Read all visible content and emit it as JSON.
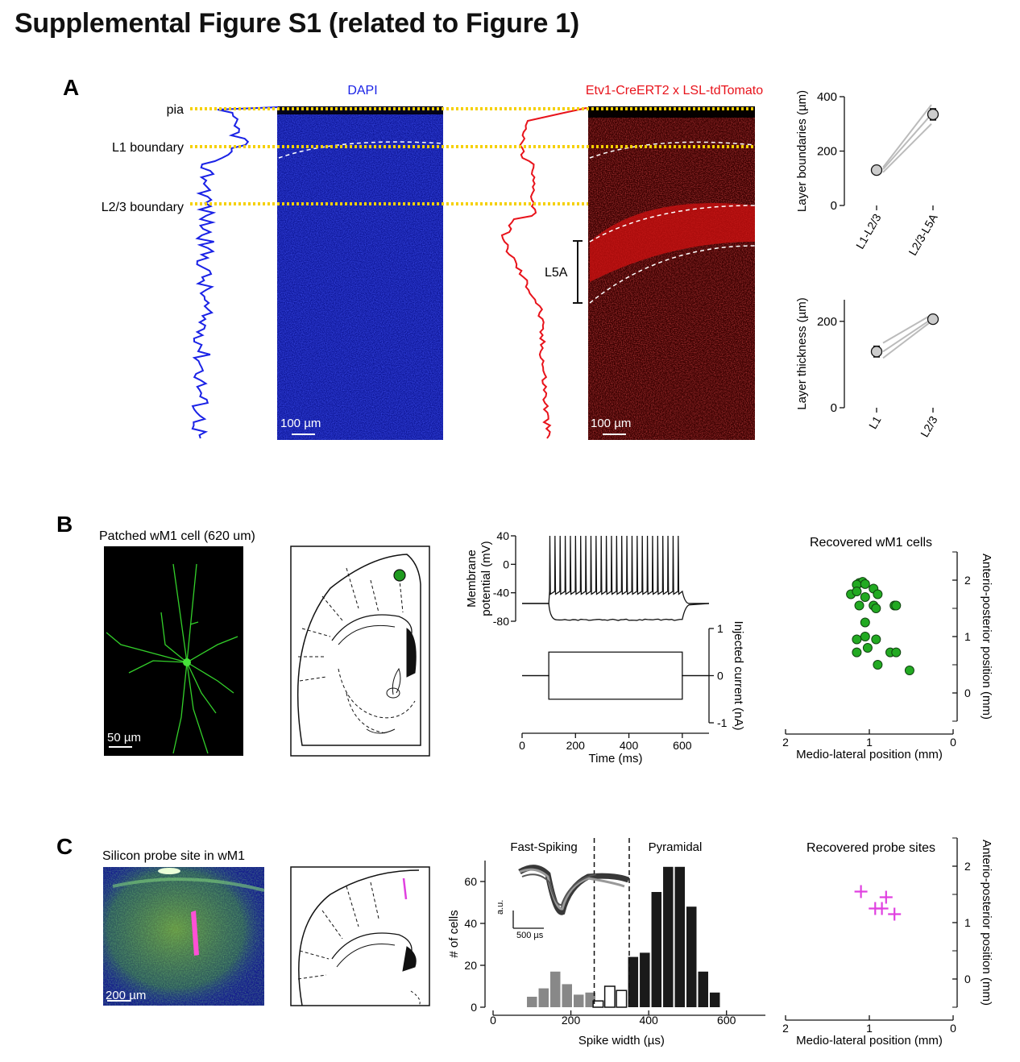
{
  "figure_title": "Supplemental Figure S1 (related to Figure 1)",
  "panel_a": {
    "label": "A",
    "layer_lines": [
      "pia",
      "L1 boundary",
      "L2/3 boundary"
    ],
    "dapi_title": "DAPI",
    "tomato_title": "Etv1-CreERT2 x LSL-tdTomato",
    "scalebar": "100 µm",
    "l5a_label": "L5A",
    "colors": {
      "dapi": "#1a22e6",
      "tomato": "#e8131b",
      "boundary": "#f5d000"
    }
  },
  "panel_b": {
    "label": "B",
    "image_title": "Patched wM1 cell (620 um)",
    "scalebar": "50 µm",
    "recovered_title": "Recovered wM1 cells"
  },
  "panel_c": {
    "label": "C",
    "image_title": "Silicon probe site in wM1",
    "scalebar": "200 µm",
    "fs_label": "Fast-Spiking",
    "pyr_label": "Pyramidal",
    "inset_y": "a.u.",
    "inset_scale": "500 µs",
    "recovered_title": "Recovered probe sites"
  },
  "chart_data": [
    {
      "id": "layer-boundaries",
      "type": "scatter",
      "categories": [
        "L1-L2/3",
        "L2/3-L5A"
      ],
      "ylabel": "Layer boundaries (µm)",
      "yticks": [
        0,
        200,
        400
      ],
      "ylim": [
        0,
        400
      ],
      "mean": [
        130,
        335
      ],
      "error": [
        5,
        20
      ],
      "individual": [
        [
          122,
          300
        ],
        [
          133,
          335
        ],
        [
          140,
          370
        ]
      ]
    },
    {
      "id": "layer-thickness",
      "type": "scatter",
      "categories": [
        "L1",
        "L2/3"
      ],
      "ylabel": "Layer thickness (µm)",
      "yticks": [
        0,
        200
      ],
      "ylim": [
        0,
        250
      ],
      "mean": [
        130,
        205
      ],
      "error": [
        12,
        5
      ],
      "individual": [
        [
          115,
          200
        ],
        [
          130,
          205
        ],
        [
          150,
          215
        ]
      ]
    },
    {
      "id": "membrane-potential",
      "type": "line",
      "ylabel": "Membrane potential (mV)",
      "yticks": [
        40,
        0,
        -40,
        -80
      ],
      "ylim": [
        -85,
        45
      ],
      "xlim": [
        0,
        700
      ],
      "rest_mv": -55,
      "hyperpol_mv": -78,
      "spike_peak_mv": 40,
      "spike_trough_mv": -38,
      "spike_count": 26,
      "step_on_ms": 100,
      "step_off_ms": 600
    },
    {
      "id": "injected-current",
      "type": "line",
      "xlabel": "Time (ms)",
      "ylabel": "Injected current (nA)",
      "xticks": [
        0,
        200,
        400,
        600
      ],
      "yticks": [
        1,
        0,
        -1
      ],
      "xlim": [
        0,
        700
      ],
      "ylim": [
        -1,
        1
      ],
      "steps_nA": [
        0.5,
        -0.5
      ],
      "step_on_ms": 100,
      "step_off_ms": 600
    },
    {
      "id": "recovered-cells",
      "type": "scatter",
      "xlabel": "Medio-lateral position (mm)",
      "ylabel": "Anterio-posterior position (mm)",
      "xticks": [
        2,
        1,
        0
      ],
      "yticks": [
        2,
        1,
        0
      ],
      "xlim": [
        2,
        0
      ],
      "ylim": [
        -0.5,
        2.5
      ],
      "color": "#22aa22",
      "points": [
        [
          1.12,
          1.95
        ],
        [
          1.08,
          1.97
        ],
        [
          1.15,
          1.92
        ],
        [
          1.05,
          1.93
        ],
        [
          0.95,
          1.85
        ],
        [
          1.22,
          1.75
        ],
        [
          1.15,
          1.8
        ],
        [
          0.9,
          1.75
        ],
        [
          1.05,
          1.7
        ],
        [
          1.12,
          1.55
        ],
        [
          0.95,
          1.55
        ],
        [
          0.92,
          1.5
        ],
        [
          0.7,
          1.55
        ],
        [
          0.68,
          1.55
        ],
        [
          1.05,
          1.25
        ],
        [
          1.05,
          1.0
        ],
        [
          0.92,
          0.95
        ],
        [
          1.15,
          0.95
        ],
        [
          1.02,
          0.8
        ],
        [
          1.15,
          0.72
        ],
        [
          0.75,
          0.72
        ],
        [
          0.68,
          0.72
        ],
        [
          0.9,
          0.5
        ],
        [
          0.52,
          0.4
        ]
      ]
    },
    {
      "id": "spike-width-histogram",
      "type": "bar",
      "xlabel": "Spike width (µs)",
      "ylabel": "# of cells",
      "xticks": [
        0,
        200,
        400,
        600
      ],
      "yticks": [
        0,
        20,
        40,
        60
      ],
      "xlim": [
        0,
        700
      ],
      "ylim": [
        0,
        70
      ],
      "bin_width": 30,
      "thresholds": [
        260,
        350
      ],
      "series": [
        {
          "name": "Fast-Spiking",
          "color": "#888888",
          "x": [
            100,
            130,
            160,
            190,
            220,
            250
          ],
          "values": [
            5,
            9,
            17,
            11,
            6,
            7
          ]
        },
        {
          "x": [
            270,
            300,
            330
          ],
          "values": [
            3,
            10,
            8
          ]
        },
        {
          "name": "Pyramidal",
          "color": "#1a1a1a",
          "x": [
            360,
            390,
            420,
            450,
            480,
            510,
            540,
            570
          ],
          "values": [
            24,
            26,
            55,
            67,
            67,
            48,
            17,
            7
          ]
        }
      ]
    },
    {
      "id": "recovered-probe-sites",
      "type": "scatter",
      "xlabel": "Medio-lateral position (mm)",
      "ylabel": "Anterio-posterior position (mm)",
      "xticks": [
        2,
        1,
        0
      ],
      "yticks": [
        2,
        1,
        0
      ],
      "xlim": [
        2,
        0
      ],
      "ylim": [
        -0.5,
        2.5
      ],
      "color": "#e040e0",
      "points": [
        [
          1.1,
          1.55
        ],
        [
          0.8,
          1.45
        ],
        [
          0.93,
          1.25
        ],
        [
          0.85,
          1.25
        ],
        [
          0.7,
          1.15
        ]
      ]
    }
  ]
}
